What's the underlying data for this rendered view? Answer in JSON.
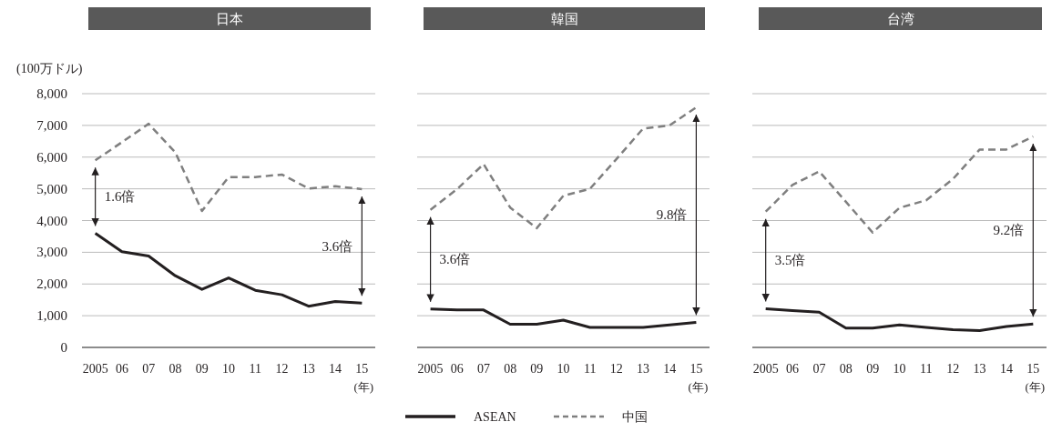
{
  "chart_data": [
    {
      "type": "line",
      "title": "日本",
      "ylabel": "(100万ドル)",
      "xlabel": "(年)",
      "categories": [
        "2005",
        "06",
        "07",
        "08",
        "09",
        "10",
        "11",
        "12",
        "13",
        "14",
        "15"
      ],
      "series": [
        {
          "color": "#231f20",
          "line_style": "solid",
          "values": [
            3600,
            3020,
            2880,
            2260,
            1830,
            2190,
            1800,
            1660,
            1300,
            1450,
            1400
          ]
        },
        {
          "color": "#7f7f7f",
          "line_style": "dashed",
          "values": [
            5900,
            6470,
            7050,
            6150,
            4300,
            5370,
            5370,
            5450,
            5010,
            5080,
            4990
          ]
        }
      ],
      "ylim": [
        0,
        8000
      ],
      "yticks": [
        0,
        {
          "value": 1000,
          "label": "1,000"
        },
        {
          "value": 2000,
          "label": "2,000"
        },
        {
          "value": 3000,
          "label": "3,000"
        },
        {
          "value": 4000,
          "label": "4,000"
        },
        {
          "value": 5000,
          "label": "5,000"
        },
        {
          "value": 6000,
          "label": "6,000"
        },
        {
          "value": 7000,
          "label": "7,000"
        },
        {
          "value": 8000,
          "label": "8,000"
        }
      ],
      "grid": "y",
      "annotations": [
        "1.6倍",
        "3.6倍"
      ]
    },
    {
      "type": "line",
      "title": "韓国",
      "xlabel": "(年)",
      "categories": [
        "2005",
        "06",
        "07",
        "08",
        "09",
        "10",
        "11",
        "12",
        "13",
        "14",
        "15"
      ],
      "series": [
        {
          "name": "ASEAN",
          "color": "#231f20",
          "line_style": "solid",
          "values": [
            1210,
            1180,
            1180,
            730,
            730,
            860,
            630,
            630,
            630,
            710,
            790
          ]
        },
        {
          "name": "中国",
          "color": "#7f7f7f",
          "line_style": "dashed",
          "values": [
            4340,
            4990,
            5780,
            4410,
            3760,
            4780,
            5000,
            5940,
            6900,
            7000,
            7570
          ]
        }
      ],
      "ylim": [
        0,
        8000
      ],
      "yticks": [
        0,
        1000,
        2000,
        3000,
        4000,
        5000,
        6000,
        7000,
        8000
      ],
      "tick_labels": "x",
      "grid": "y",
      "legend": "bottom",
      "annotations": [
        "3.6倍",
        "9.8倍"
      ]
    },
    {
      "type": "line",
      "title": "台湾",
      "xlabel": "(年)",
      "categories": [
        "2005",
        "06",
        "07",
        "08",
        "09",
        "10",
        "11",
        "12",
        "13",
        "14",
        "15"
      ],
      "series": [
        {
          "color": "#231f20",
          "line_style": "solid",
          "values": [
            1220,
            1160,
            1110,
            610,
            610,
            710,
            630,
            560,
            530,
            660,
            740
          ]
        },
        {
          "color": "#7f7f7f",
          "line_style": "dashed",
          "values": [
            4280,
            5120,
            5550,
            4590,
            3620,
            4400,
            4640,
            5310,
            6240,
            6240,
            6650
          ]
        }
      ],
      "ylim": [
        0,
        8000
      ],
      "yticks": [
        0,
        1000,
        2000,
        3000,
        4000,
        5000,
        6000,
        7000,
        8000
      ],
      "tick_labels": "x",
      "grid": "y",
      "annotations": [
        "3.5倍",
        "9.2倍"
      ]
    }
  ]
}
